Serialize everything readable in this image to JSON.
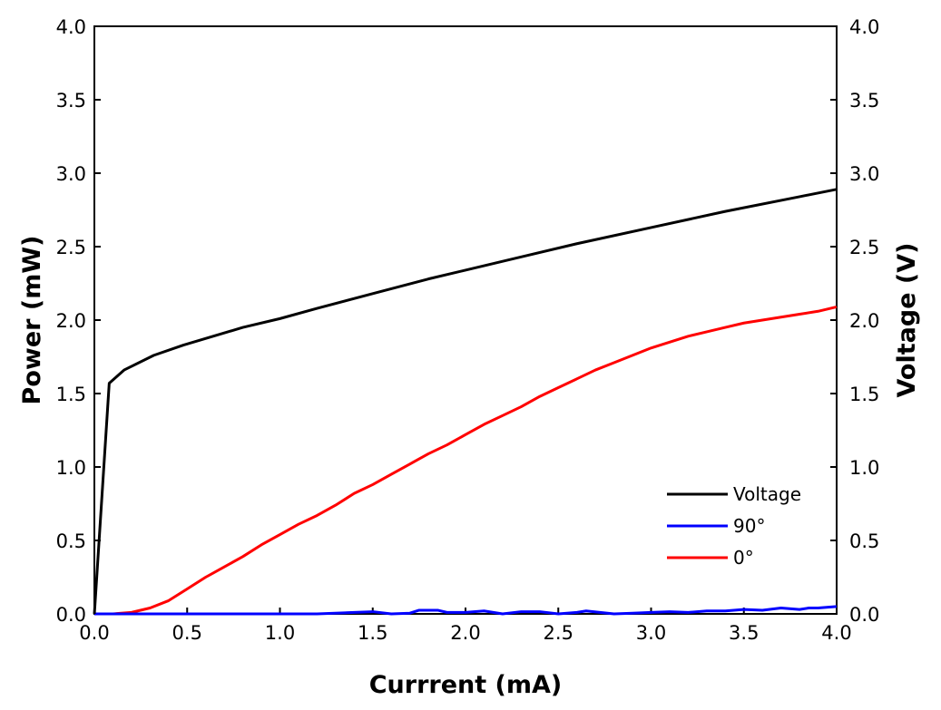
{
  "chart_data": {
    "type": "line",
    "title": "",
    "xlabel": "Currrent (mA)",
    "ylabel_left": "Power (mW)",
    "ylabel_right": "Voltage (V)",
    "xlim": [
      0,
      4.0
    ],
    "ylim_left": [
      0,
      4.0
    ],
    "ylim_right": [
      0,
      4.0
    ],
    "x_ticks": [
      "0.0",
      "0.5",
      "1.0",
      "1.5",
      "2.0",
      "2.5",
      "3.0",
      "3.5",
      "4.0"
    ],
    "y_ticks": [
      "0.0",
      "0.5",
      "1.0",
      "1.5",
      "2.0",
      "2.5",
      "3.0",
      "3.5",
      "4.0"
    ],
    "grid": false,
    "legend_position": "bottom-right",
    "series": [
      {
        "name": "Voltage",
        "axis": "right",
        "color": "#000000",
        "x": [
          0,
          0.08,
          0.16,
          0.32,
          0.48,
          0.64,
          0.8,
          1.0,
          1.2,
          1.5,
          1.8,
          2.0,
          2.3,
          2.6,
          3.0,
          3.4,
          3.8,
          4.0
        ],
        "y": [
          0.0,
          1.57,
          1.66,
          1.76,
          1.83,
          1.89,
          1.95,
          2.01,
          2.08,
          2.18,
          2.28,
          2.34,
          2.43,
          2.52,
          2.63,
          2.74,
          2.84,
          2.89
        ]
      },
      {
        "name": "90°",
        "axis": "left",
        "color": "#0000ff",
        "x": [
          0,
          0.5,
          1.0,
          1.2,
          1.4,
          1.5,
          1.6,
          1.7,
          1.75,
          1.85,
          1.9,
          2.0,
          2.1,
          2.2,
          2.3,
          2.4,
          2.5,
          2.6,
          2.65,
          2.8,
          2.9,
          3.0,
          3.1,
          3.2,
          3.3,
          3.4,
          3.5,
          3.6,
          3.7,
          3.8,
          3.85,
          3.9,
          4.0
        ],
        "y": [
          0.0,
          0.0,
          0.0,
          0.0,
          0.01,
          0.015,
          0.0,
          0.005,
          0.025,
          0.025,
          0.01,
          0.01,
          0.02,
          0.0,
          0.015,
          0.015,
          0.0,
          0.01,
          0.02,
          0.0,
          0.005,
          0.01,
          0.015,
          0.01,
          0.02,
          0.02,
          0.03,
          0.025,
          0.04,
          0.03,
          0.04,
          0.04,
          0.05
        ]
      },
      {
        "name": "0°",
        "axis": "left",
        "color": "#ff0000",
        "x": [
          0,
          0.1,
          0.2,
          0.3,
          0.4,
          0.5,
          0.6,
          0.7,
          0.8,
          0.9,
          1.0,
          1.1,
          1.2,
          1.3,
          1.4,
          1.5,
          1.6,
          1.7,
          1.8,
          1.9,
          2.0,
          2.1,
          2.2,
          2.3,
          2.4,
          2.5,
          2.6,
          2.7,
          2.8,
          2.9,
          3.0,
          3.1,
          3.2,
          3.3,
          3.4,
          3.5,
          3.6,
          3.7,
          3.8,
          3.9,
          4.0
        ],
        "y": [
          0.0,
          0.0,
          0.01,
          0.04,
          0.09,
          0.17,
          0.25,
          0.32,
          0.39,
          0.47,
          0.54,
          0.61,
          0.67,
          0.74,
          0.82,
          0.88,
          0.95,
          1.02,
          1.09,
          1.15,
          1.22,
          1.29,
          1.35,
          1.41,
          1.48,
          1.54,
          1.6,
          1.66,
          1.71,
          1.76,
          1.81,
          1.85,
          1.89,
          1.92,
          1.95,
          1.98,
          2.0,
          2.02,
          2.04,
          2.06,
          2.09
        ]
      }
    ]
  }
}
